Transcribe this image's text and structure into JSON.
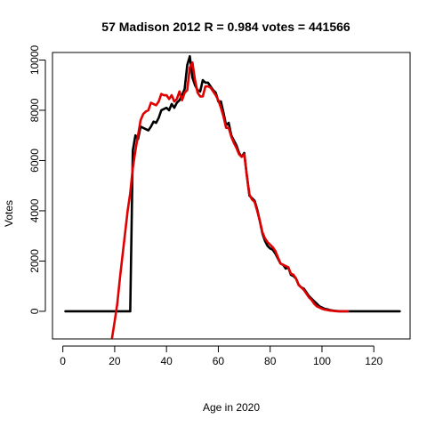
{
  "chart_data": {
    "type": "line",
    "title": "57 Madison 2012 R = 0.984 votes = 441566",
    "xlabel": "Age in 2020",
    "ylabel": "Votes",
    "xlim": [
      -4,
      134
    ],
    "ylim": [
      -1100,
      10300
    ],
    "xticks": [
      0,
      20,
      40,
      60,
      80,
      100,
      120
    ],
    "yticks": [
      0,
      2000,
      4000,
      6000,
      8000,
      10000
    ],
    "grid": false,
    "legend": "none",
    "series": [
      {
        "color": "#000000",
        "x": [
          1,
          26,
          27,
          28,
          29,
          30,
          31,
          32,
          33,
          34,
          35,
          36,
          37,
          38,
          39,
          40,
          41,
          42,
          43,
          44,
          45,
          46,
          47,
          48,
          49,
          50,
          51,
          52,
          53,
          54,
          55,
          56,
          57,
          58,
          59,
          60,
          61,
          62,
          63,
          64,
          65,
          66,
          67,
          68,
          69,
          70,
          71,
          72,
          73,
          74,
          75,
          76,
          77,
          78,
          79,
          80,
          81,
          82,
          83,
          84,
          85,
          86,
          87,
          88,
          89,
          90,
          91,
          92,
          93,
          94,
          95,
          96,
          97,
          98,
          99,
          100,
          101,
          102,
          103,
          104,
          105,
          106,
          107,
          108,
          109,
          110,
          130
        ],
        "y": [
          0,
          0,
          6400,
          7000,
          6850,
          7350,
          7300,
          7250,
          7200,
          7350,
          7550,
          7500,
          7700,
          8000,
          8050,
          8100,
          8000,
          8250,
          8100,
          8300,
          8400,
          8600,
          8850,
          9800,
          10150,
          9300,
          9000,
          8800,
          8750,
          9200,
          9100,
          9100,
          8950,
          8800,
          8700,
          8350,
          8350,
          7900,
          7400,
          7500,
          7000,
          6800,
          6600,
          6300,
          6150,
          6300,
          5400,
          4600,
          4500,
          4400,
          4050,
          3600,
          3100,
          2800,
          2600,
          2500,
          2450,
          2300,
          2100,
          1900,
          1850,
          1700,
          1750,
          1450,
          1400,
          1300,
          1050,
          950,
          900,
          750,
          600,
          500,
          400,
          300,
          200,
          150,
          100,
          80,
          50,
          30,
          20,
          10,
          0,
          0,
          0,
          0,
          0
        ]
      },
      {
        "color": "#e00000",
        "x": [
          19,
          20,
          21,
          22,
          23,
          24,
          25,
          26,
          27,
          28,
          29,
          30,
          31,
          32,
          33,
          34,
          35,
          36,
          37,
          38,
          39,
          40,
          41,
          42,
          43,
          44,
          45,
          46,
          47,
          48,
          49,
          50,
          51,
          52,
          53,
          54,
          55,
          56,
          57,
          58,
          59,
          60,
          61,
          62,
          63,
          64,
          65,
          66,
          67,
          68,
          69,
          70,
          71,
          72,
          73,
          74,
          75,
          76,
          77,
          78,
          79,
          80,
          81,
          82,
          83,
          84,
          85,
          86,
          87,
          88,
          89,
          90,
          91,
          92,
          93,
          94,
          95,
          96,
          97,
          98,
          99,
          100,
          101,
          102,
          103,
          104,
          105,
          106,
          107,
          108,
          109,
          110
        ],
        "y": [
          -1050,
          -400,
          300,
          1300,
          2200,
          3100,
          4000,
          4700,
          5700,
          6400,
          7000,
          7600,
          7850,
          7950,
          8000,
          8300,
          8250,
          8200,
          8350,
          8650,
          8600,
          8600,
          8450,
          8600,
          8350,
          8450,
          8750,
          8400,
          8700,
          8800,
          9700,
          9900,
          9200,
          8700,
          8550,
          8550,
          8950,
          8950,
          8900,
          8750,
          8600,
          8400,
          8100,
          7750,
          7300,
          7300,
          6950,
          6700,
          6500,
          6250,
          6150,
          6250,
          5400,
          4650,
          4450,
          4350,
          4000,
          3600,
          3150,
          2900,
          2750,
          2650,
          2550,
          2400,
          2150,
          1900,
          1850,
          1800,
          1750,
          1500,
          1450,
          1300,
          1050,
          950,
          850,
          700,
          550,
          450,
          300,
          200,
          150,
          100,
          70,
          50,
          30,
          20,
          10,
          0,
          0,
          0,
          0,
          0
        ]
      }
    ]
  }
}
